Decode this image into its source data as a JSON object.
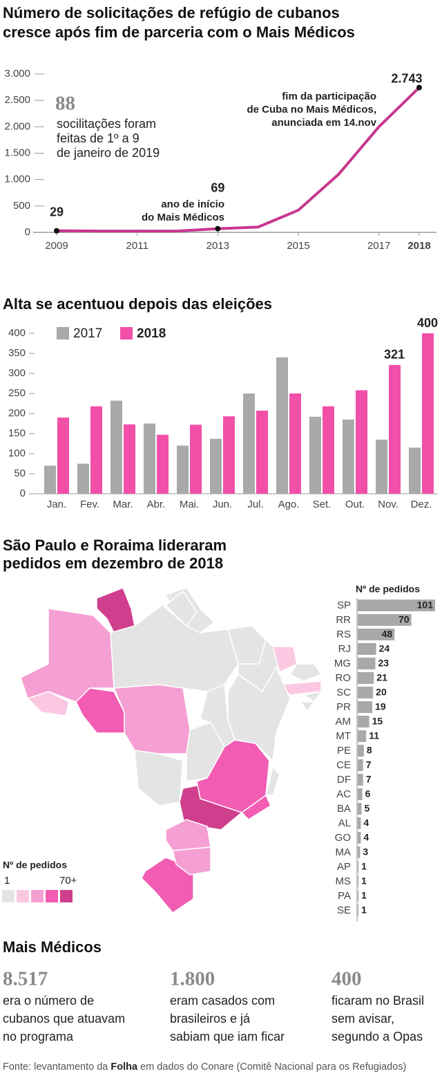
{
  "chart_data": [
    {
      "type": "line",
      "title": [
        "Número de solicitações de refúgio de cubanos",
        "cresce após fim de parceria com o Mais Médicos"
      ],
      "x": [
        2009,
        2010,
        2011,
        2012,
        2013,
        2014,
        2015,
        2016,
        2017,
        2018
      ],
      "values": [
        29,
        25,
        25,
        25,
        69,
        100,
        420,
        1100,
        2000,
        2743
      ],
      "value_labels": [
        "29",
        null,
        null,
        null,
        "69",
        null,
        null,
        null,
        null,
        "2.743"
      ],
      "color": "#c8378f",
      "xlim": [
        2009,
        2018
      ],
      "xticks": [
        2009,
        2011,
        2013,
        2015,
        2017,
        2018
      ],
      "ylim": [
        0,
        3000
      ],
      "yticks": [
        0,
        500,
        {
          "value": 1000,
          "label": "1.000"
        },
        {
          "value": 1500,
          "label": "1.500"
        },
        {
          "value": 2000,
          "label": "2.000"
        },
        {
          "value": 2500,
          "label": "2.500"
        },
        {
          "value": 3000,
          "label": "3.000"
        }
      ],
      "highlight": {
        "value": "88",
        "lines": [
          "socilitações foram",
          "feitas de 1º a 9",
          "de janeiro de 2019"
        ]
      },
      "annotations": [
        {
          "lines": [
            "ano de início",
            "do Mais Médicos"
          ]
        },
        {
          "lines": [
            "fim da participação",
            "de Cuba no Mais Médicos,",
            "anunciada em 14.nov"
          ]
        }
      ]
    },
    {
      "type": "bar",
      "title": "Alta se acentuou depois das eleições",
      "categories": [
        "Jan.",
        "Fev.",
        "Mar.",
        "Abr.",
        "Mai.",
        "Jun.",
        "Jul.",
        "Ago.",
        "Set.",
        "Out.",
        "Nov.",
        "Dez."
      ],
      "series": [
        {
          "name": "2017",
          "color": "#a9a9a9",
          "values": [
            70,
            75,
            232,
            175,
            120,
            137,
            250,
            340,
            192,
            185,
            135,
            115
          ]
        },
        {
          "name": "2018",
          "color": "#f24fa8",
          "values": [
            190,
            218,
            173,
            147,
            172,
            193,
            207,
            250,
            218,
            258,
            321,
            400
          ],
          "value_labels": [
            null,
            null,
            null,
            null,
            null,
            null,
            null,
            null,
            null,
            null,
            "321",
            "400"
          ]
        }
      ],
      "ylim": [
        0,
        400
      ],
      "yticks": [
        0,
        50,
        100,
        150,
        200,
        250,
        300,
        350,
        400
      ]
    },
    {
      "type": "choropleth",
      "title": [
        "São Paulo e Roraima lideraram",
        "pedidos em dezembro de 2018"
      ],
      "axis_label": "Nº de pedidos",
      "categories": [
        "SP",
        "RR",
        "RS",
        "RJ",
        "MG",
        "RO",
        "SC",
        "PR",
        "AM",
        "MT",
        "PE",
        "CE",
        "DF",
        "AC",
        "BA",
        "AL",
        "GO",
        "MA",
        "AP",
        "MS",
        "PA",
        "SE"
      ],
      "values": [
        101,
        70,
        48,
        24,
        23,
        21,
        20,
        19,
        15,
        11,
        8,
        7,
        7,
        6,
        5,
        4,
        4,
        3,
        1,
        1,
        1,
        1
      ],
      "colors": [
        "#cf3f8d",
        "#cf3f8d",
        "#f25cb3",
        "#f25cb3",
        "#f25cb3",
        "#f25cb3",
        "#f59fd3",
        "#f59fd3",
        "#f59fd3",
        "#f59fd3",
        "#fbc8e2",
        "#fbc8e2",
        "#fbc8e2",
        "#fbc8e2",
        "#e4e4e4",
        "#e4e4e4",
        "#e4e4e4",
        "#e4e4e4",
        "#e4e4e4",
        "#e4e4e4",
        "#e4e4e4",
        "#e4e4e4"
      ],
      "bar_color": "#a9a9a9",
      "xlim": [
        0,
        101
      ],
      "legend": {
        "title": "Nº de pedidos",
        "min_label": "1",
        "max_label": "70+",
        "colors": [
          "#e4e4e4",
          "#fbc8e2",
          "#f59fd3",
          "#f25cb3",
          "#cf3f8d"
        ]
      }
    }
  ],
  "facts": {
    "title": "Mais Médicos",
    "items": [
      {
        "value": "8.517",
        "lines": [
          "era o número de",
          "cubanos que atuavam",
          "no programa"
        ]
      },
      {
        "value": "1.800",
        "lines": [
          "eram casados com",
          "brasileiros e já",
          "sabiam que iam ficar"
        ]
      },
      {
        "value": "400",
        "lines": [
          "ficaram no Brasil",
          "sem avisar,",
          "segundo a Opas"
        ]
      }
    ]
  },
  "source": [
    "Fonte: levantamento da ",
    "Folha",
    " em dados do Conare (Comitê Nacional para os Refugiados)"
  ]
}
